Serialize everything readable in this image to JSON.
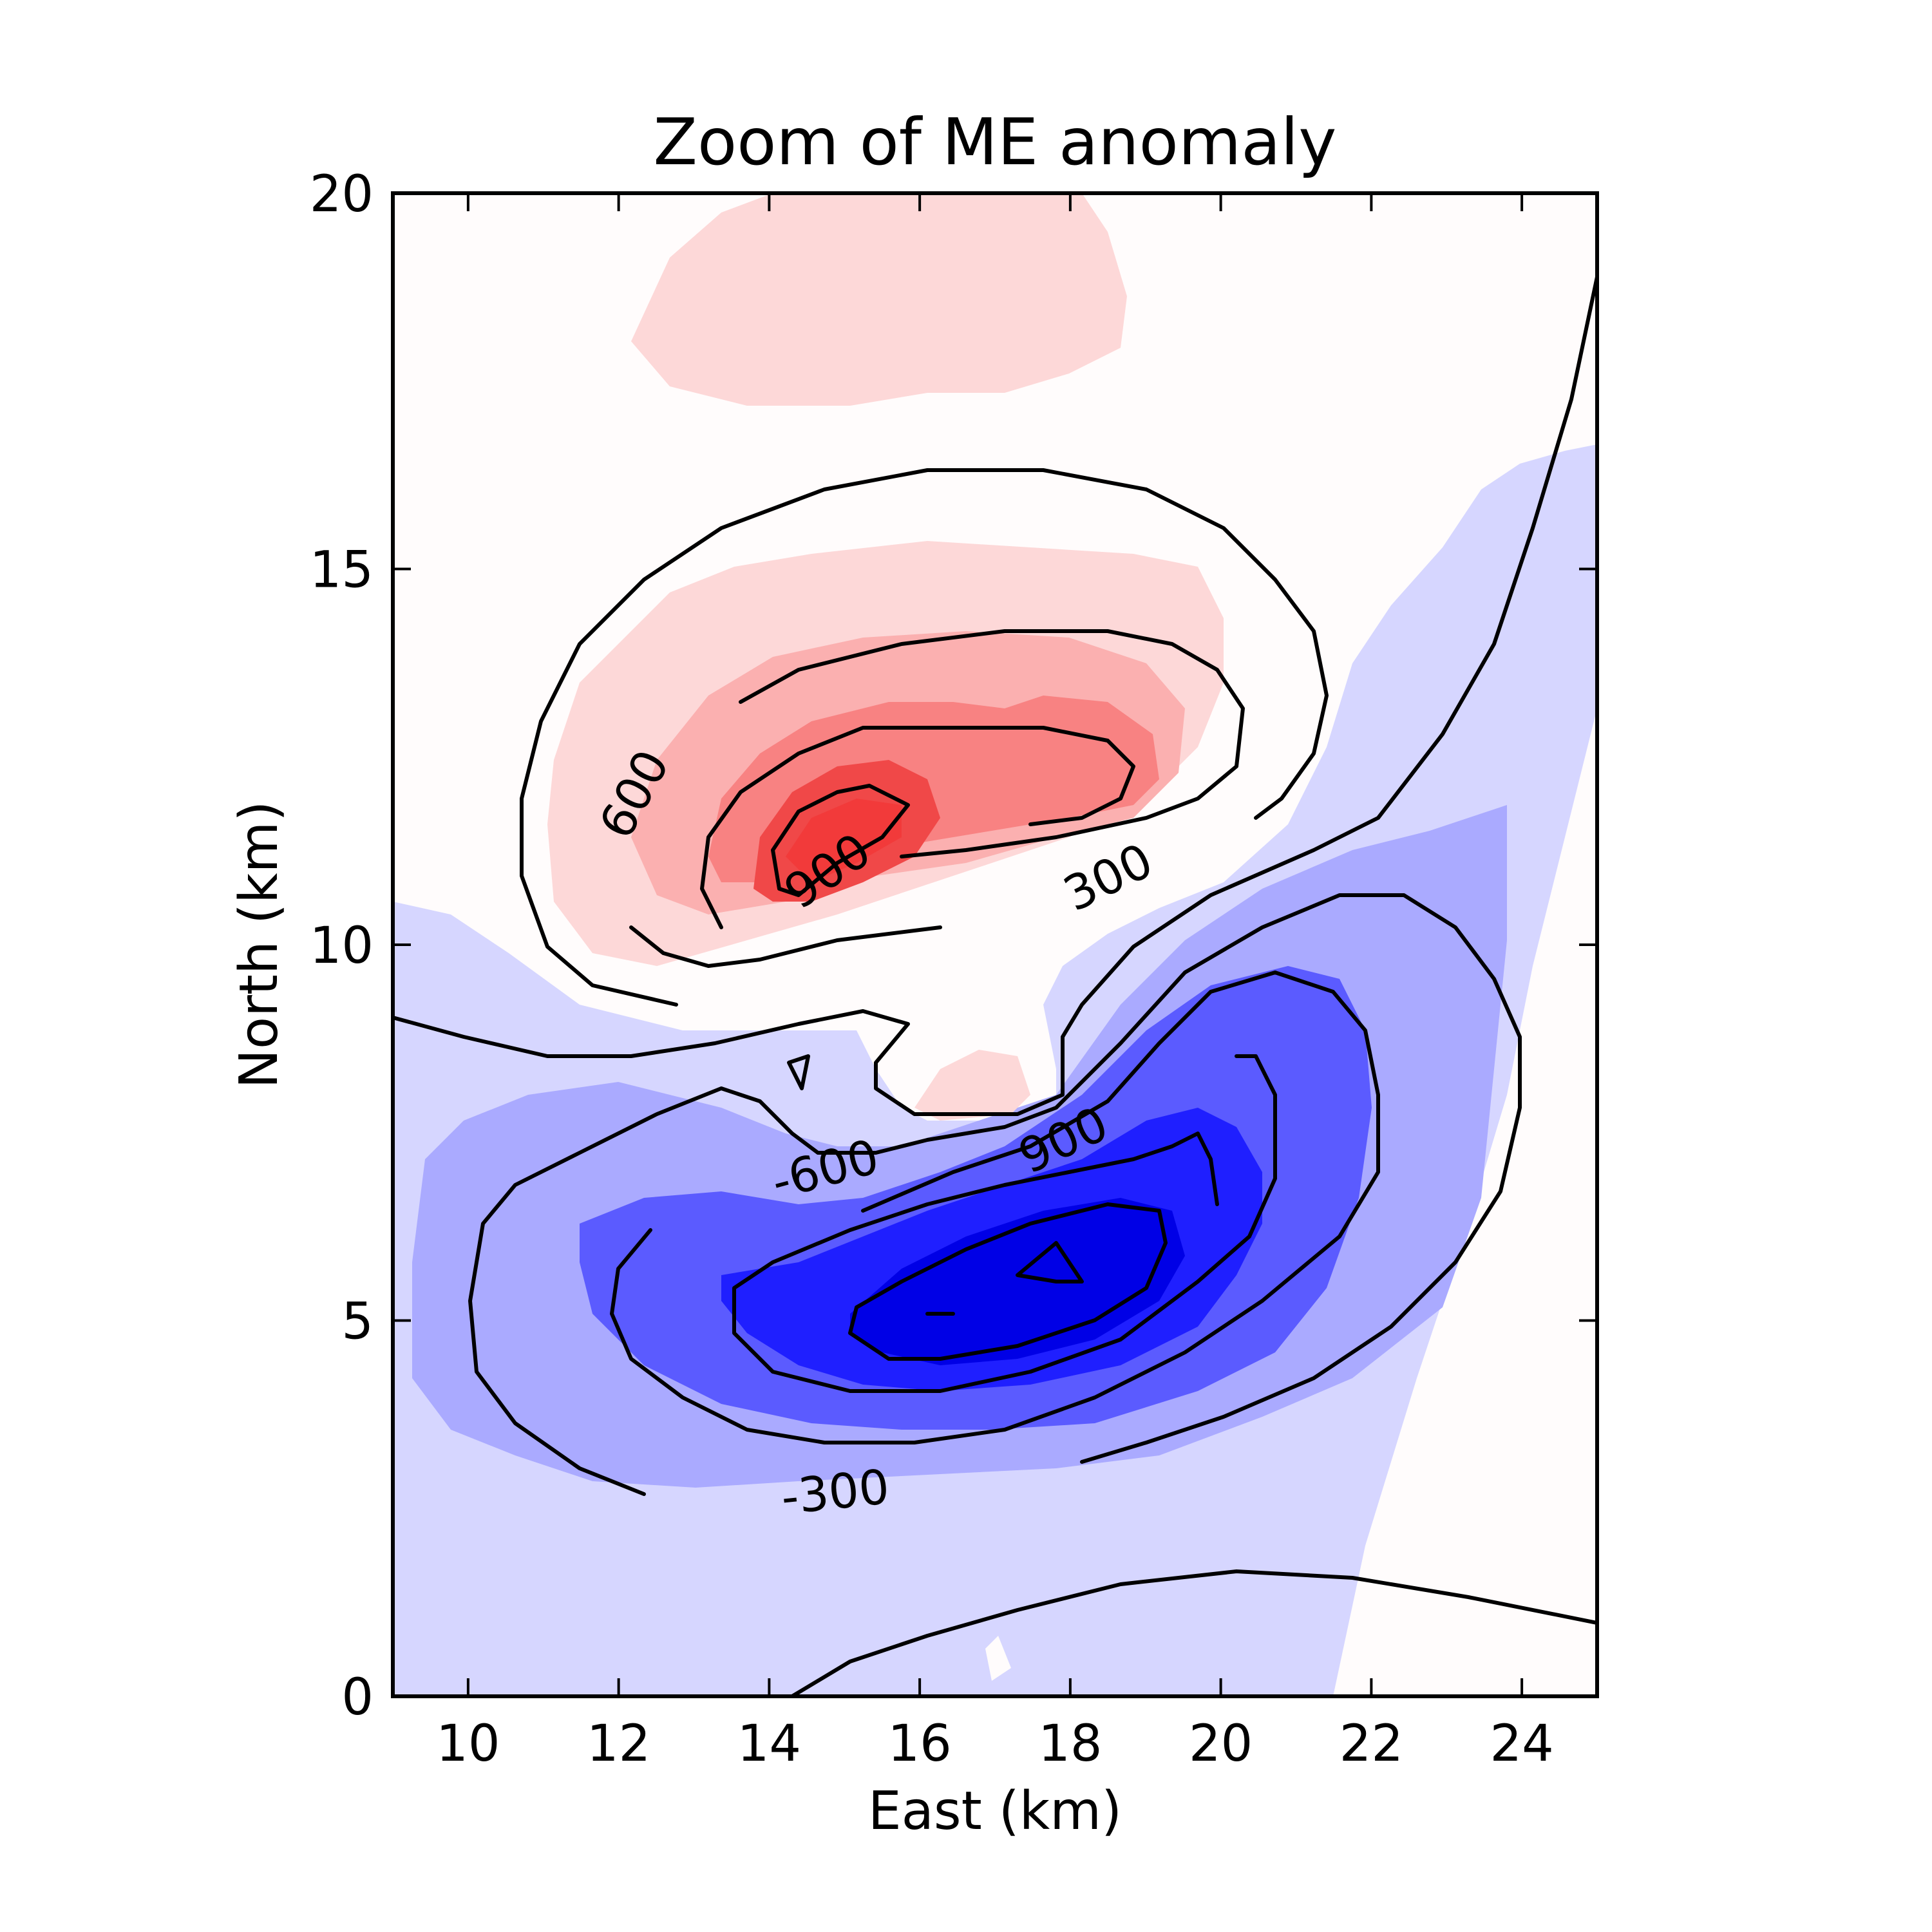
{
  "chart_data": {
    "type": "contour",
    "title": "Zoom of ME anomaly",
    "xlabel": "East (km)",
    "ylabel": "North (km)",
    "xlim": [
      9,
      25
    ],
    "ylim": [
      0,
      20
    ],
    "xticks": [
      10,
      12,
      14,
      16,
      18,
      20,
      22,
      24
    ],
    "yticks": [
      0,
      5,
      10,
      15,
      20
    ],
    "grid": false,
    "colormap": "diverging blue-white-red",
    "colors": {
      "neg_strong": "#0000e6",
      "neg_mid": "#5b5bff",
      "neg_light": "#aaaaff",
      "neg_faint": "#d6d6ff",
      "pos_faint": "#fdd8d8",
      "pos_light": "#fbb0b0",
      "pos_mid": "#f88282",
      "pos_strong": "#f04848",
      "background": "#fffcfc"
    },
    "contour_levels": [
      -1200,
      -900,
      -600,
      -300,
      300,
      600,
      900,
      1200
    ],
    "contour_labels": [
      {
        "text": "600",
        "x": 12.4,
        "y": 11.9,
        "rotate": -62
      },
      {
        "text": "900",
        "x": 14.9,
        "y": 10.8,
        "rotate": -35
      },
      {
        "text": "300",
        "x": 18.6,
        "y": 10.7,
        "rotate": -26
      },
      {
        "text": "-600",
        "x": 14.8,
        "y": 6.8,
        "rotate": -15
      },
      {
        "text": "900",
        "x": 18.0,
        "y": 7.2,
        "rotate": -25
      },
      {
        "text": "-300",
        "x": 14.9,
        "y": 2.5,
        "rotate": -6
      }
    ],
    "features": [
      {
        "name": "positive anomaly",
        "sign": "+",
        "center": [
          15.2,
          11.8
        ],
        "peak": 1200
      },
      {
        "name": "negative anomaly",
        "sign": "-",
        "center": [
          17.6,
          5.7
        ],
        "peak": -1200
      }
    ]
  }
}
